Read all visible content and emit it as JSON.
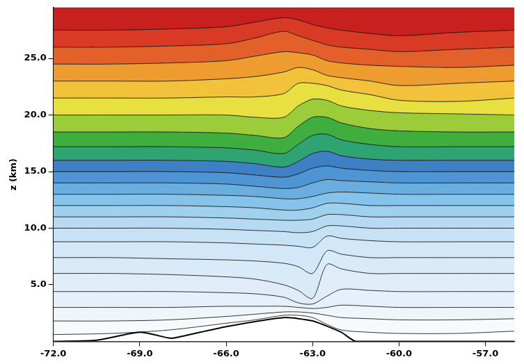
{
  "chart_data": {
    "type": "area",
    "y_label": "z (km)",
    "x": [
      -72,
      -70,
      -68,
      -66,
      -65,
      -64,
      -63.5,
      -63,
      -62.5,
      -62,
      -61,
      -60,
      -58,
      -56
    ],
    "series": [
      {
        "color": "#ffffff",
        "values": [
          0.6,
          0.7,
          1.0,
          1.6,
          1.9,
          2.3,
          2.3,
          2.1,
          1.5,
          1.0,
          0.8,
          0.7,
          0.7,
          0.9
        ]
      },
      {
        "color": "#f7fafd",
        "values": [
          1.8,
          1.8,
          1.9,
          2.2,
          2.4,
          2.6,
          2.6,
          2.5,
          2.3,
          2.1,
          2.0,
          1.9,
          1.9,
          2.0
        ]
      },
      {
        "color": "#eef5fb",
        "values": [
          3.0,
          3.0,
          3.0,
          3.1,
          3.1,
          3.1,
          3.0,
          2.9,
          3.0,
          3.2,
          3.1,
          3.0,
          3.0,
          3.0
        ]
      },
      {
        "color": "#e6f0fa",
        "values": [
          4.4,
          4.4,
          4.4,
          4.3,
          4.2,
          3.9,
          3.4,
          3.3,
          4.0,
          4.6,
          4.5,
          4.4,
          4.4,
          4.4
        ]
      },
      {
        "color": "#e0edf9",
        "values": [
          6.0,
          6.0,
          5.9,
          5.7,
          5.5,
          5.0,
          4.5,
          3.8,
          6.8,
          6.4,
          6.0,
          6.0,
          6.0,
          6.0
        ]
      },
      {
        "color": "#d9ebf9",
        "values": [
          7.4,
          7.4,
          7.3,
          7.2,
          7.1,
          6.9,
          6.6,
          6.0,
          8.0,
          7.7,
          7.4,
          7.4,
          7.4,
          7.4
        ]
      },
      {
        "color": "#d2e7f7",
        "values": [
          8.8,
          8.8,
          8.8,
          8.7,
          8.6,
          8.5,
          8.4,
          8.3,
          9.3,
          9.1,
          8.9,
          8.8,
          8.8,
          8.8
        ]
      },
      {
        "color": "#c7e2f5",
        "values": [
          10.0,
          10.0,
          10.0,
          9.9,
          9.8,
          9.7,
          9.6,
          9.7,
          10.2,
          10.2,
          10.0,
          10.0,
          10.0,
          10.0
        ]
      },
      {
        "color": "#b5daf2",
        "values": [
          11.0,
          11.0,
          11.0,
          10.9,
          10.8,
          10.7,
          10.7,
          10.8,
          11.2,
          11.2,
          11.0,
          11.0,
          11.0,
          11.0
        ]
      },
      {
        "color": "#9fd0ee",
        "values": [
          12.0,
          12.0,
          12.0,
          11.9,
          11.8,
          11.6,
          11.6,
          11.8,
          12.2,
          12.2,
          12.0,
          12.0,
          12.0,
          12.0
        ]
      },
      {
        "color": "#86c3ea",
        "values": [
          13.0,
          13.0,
          13.0,
          12.9,
          12.8,
          12.6,
          12.6,
          12.8,
          13.1,
          13.2,
          13.1,
          13.0,
          13.0,
          13.0
        ]
      },
      {
        "color": "#6aaee0",
        "values": [
          14.0,
          14.0,
          14.0,
          13.9,
          13.7,
          13.5,
          13.6,
          14.0,
          14.3,
          14.2,
          14.1,
          14.0,
          14.0,
          14.0
        ]
      },
      {
        "color": "#4f95d3",
        "values": [
          15.0,
          15.0,
          15.0,
          14.9,
          14.7,
          14.5,
          14.8,
          15.3,
          15.5,
          15.3,
          15.1,
          15.0,
          15.0,
          15.0
        ]
      },
      {
        "color": "#3f7fc4",
        "values": [
          16.0,
          16.0,
          16.0,
          15.9,
          15.7,
          15.4,
          15.9,
          16.6,
          16.8,
          16.4,
          16.1,
          16.0,
          16.0,
          16.0
        ]
      },
      {
        "color": "#2fa372",
        "values": [
          17.2,
          17.2,
          17.2,
          17.1,
          16.9,
          16.6,
          17.4,
          18.2,
          18.3,
          17.8,
          17.4,
          17.2,
          17.2,
          17.2
        ]
      },
      {
        "color": "#3fae3f",
        "values": [
          18.5,
          18.5,
          18.5,
          18.4,
          18.2,
          18.0,
          19.0,
          19.8,
          19.8,
          19.3,
          18.8,
          18.6,
          18.5,
          18.5
        ]
      },
      {
        "color": "#9ccc3a",
        "values": [
          20.0,
          20.0,
          20.0,
          20.0,
          19.8,
          19.8,
          20.8,
          21.4,
          21.3,
          20.8,
          20.4,
          20.2,
          20.1,
          20.0
        ]
      },
      {
        "color": "#e8e040",
        "values": [
          21.5,
          21.5,
          21.5,
          21.6,
          21.6,
          21.9,
          22.8,
          22.8,
          22.6,
          22.2,
          21.8,
          21.3,
          21.2,
          21.5
        ]
      },
      {
        "color": "#f2c23a",
        "values": [
          23.0,
          23.0,
          23.0,
          23.2,
          23.4,
          23.8,
          24.2,
          24.0,
          23.5,
          23.3,
          23.0,
          22.6,
          22.8,
          23.0
        ]
      },
      {
        "color": "#ee9b30",
        "values": [
          24.5,
          24.5,
          24.6,
          24.8,
          25.2,
          25.6,
          25.5,
          25.3,
          24.8,
          24.6,
          24.4,
          24.3,
          24.2,
          24.4
        ]
      },
      {
        "color": "#e3602a",
        "values": [
          26.0,
          26.0,
          26.1,
          26.3,
          26.8,
          27.4,
          27.0,
          26.6,
          26.2,
          26.0,
          25.8,
          25.6,
          25.8,
          26.0
        ]
      },
      {
        "color": "#d83a26",
        "values": [
          27.5,
          27.5,
          27.6,
          27.8,
          28.2,
          28.6,
          28.4,
          28.0,
          27.7,
          27.5,
          27.2,
          27.0,
          27.3,
          27.5
        ]
      },
      {
        "color": "#c8201e",
        "values": [
          29.5,
          29.5,
          29.5,
          29.5,
          29.5,
          29.5,
          29.5,
          29.5,
          29.5,
          29.5,
          29.5,
          29.5,
          29.5,
          29.5
        ]
      }
    ],
    "terrain": {
      "color": "#000000",
      "x": [
        -72,
        -70.5,
        -69,
        -68,
        -67.8,
        -66,
        -64,
        -63,
        -62,
        -61.5,
        -56
      ],
      "values": [
        0,
        0.1,
        0.8,
        0.3,
        0.3,
        1.3,
        2.1,
        1.8,
        0.8,
        0,
        0
      ]
    },
    "xlim": [
      -72,
      -56
    ],
    "ylim": [
      0,
      29.5
    ],
    "xticks": [
      {
        "value": -72,
        "label": "-72.0"
      },
      {
        "value": -69,
        "label": "-69.0"
      },
      {
        "value": -66,
        "label": "-66.0"
      },
      {
        "value": -63,
        "label": "-63.0"
      },
      {
        "value": -60,
        "label": "-60.0"
      },
      {
        "value": -57,
        "label": "-57.0"
      }
    ],
    "yticks": [
      {
        "value": 5,
        "label": "5.0"
      },
      {
        "value": 10,
        "label": "10.0"
      },
      {
        "value": 15,
        "label": "15.0"
      },
      {
        "value": 20,
        "label": "20.0"
      },
      {
        "value": 25,
        "label": "25.0"
      }
    ],
    "grid": false
  }
}
